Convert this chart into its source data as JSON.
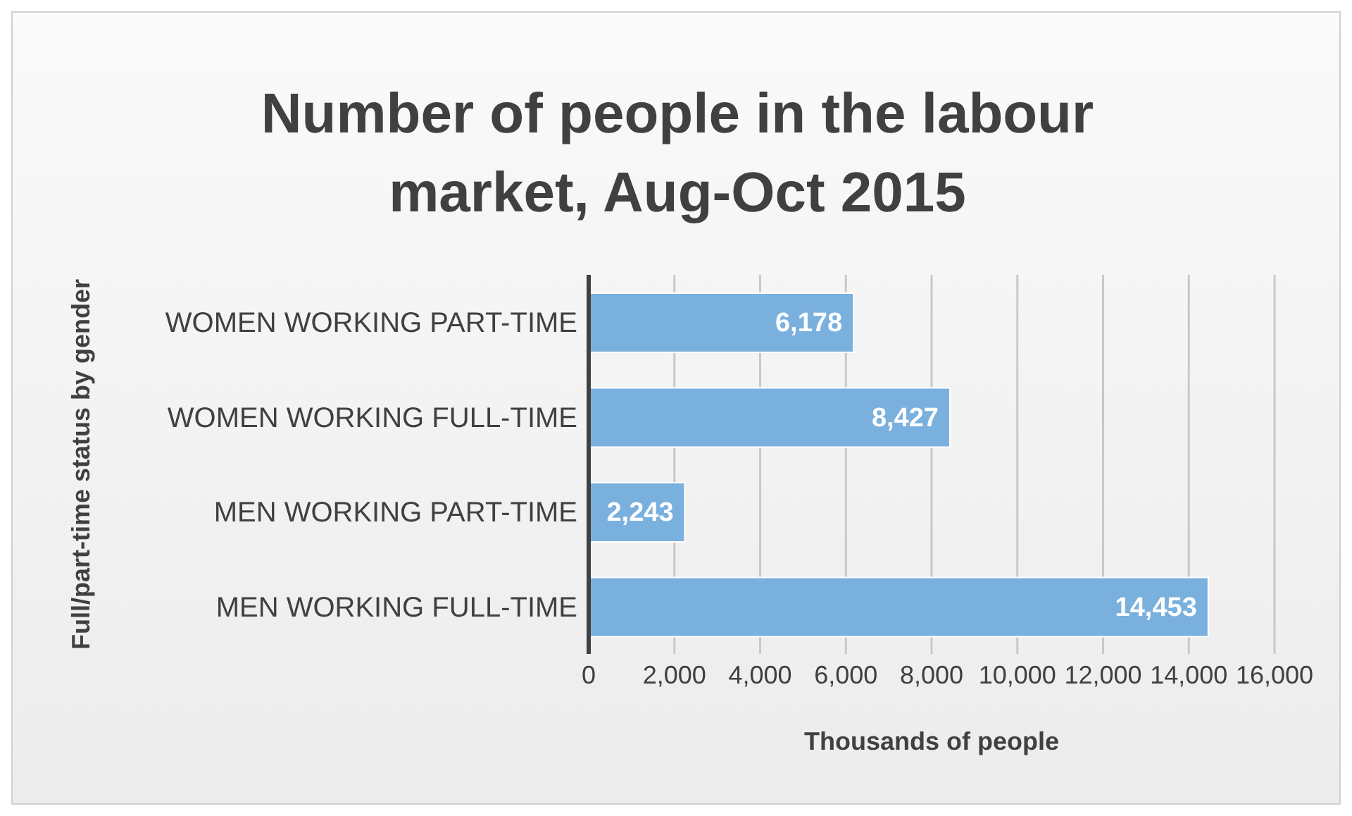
{
  "chart_data": {
    "type": "bar",
    "orientation": "horizontal",
    "title": "Number of people in the labour market, Aug-Oct 2015",
    "xlabel": "Thousands of people",
    "ylabel": "Full/part-time status by gender",
    "categories": [
      "WOMEN WORKING PART-TIME",
      "WOMEN WORKING FULL-TIME",
      "MEN WORKING PART-TIME",
      "MEN WORKING FULL-TIME"
    ],
    "values": [
      6178,
      8427,
      2243,
      14453
    ],
    "value_labels": [
      "6,178",
      "8,427",
      "2,243",
      "14,453"
    ],
    "color": "#7ab0de",
    "xlim": [
      0,
      16000
    ],
    "xticks": [
      0,
      {
        "value": 2000,
        "label": "2,000"
      },
      {
        "value": 4000,
        "label": "4,000"
      },
      {
        "value": 6000,
        "label": "6,000"
      },
      {
        "value": 8000,
        "label": "8,000"
      },
      {
        "value": 10000,
        "label": "10,000"
      },
      {
        "value": 12000,
        "label": "12,000"
      },
      {
        "value": 14000,
        "label": "14,000"
      },
      {
        "value": 16000,
        "label": "16,000"
      }
    ],
    "grid": "x"
  }
}
